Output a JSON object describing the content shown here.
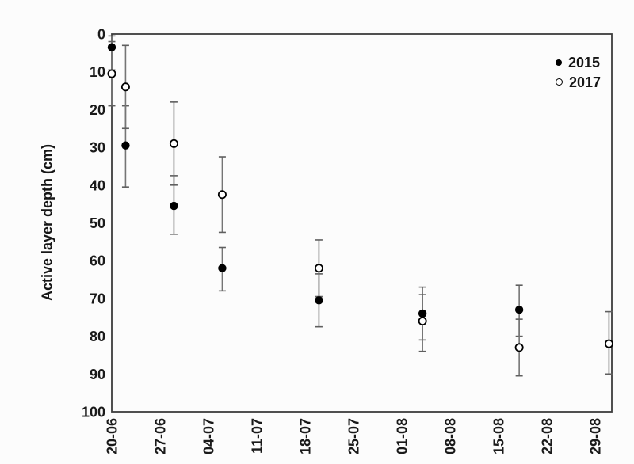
{
  "chart_data": {
    "type": "scatter",
    "title": "",
    "xlabel": "",
    "ylabel": "Active layer depth (cm)",
    "grid": false,
    "error_bars": true,
    "legend": {
      "position": "top-right",
      "entries": [
        "2015",
        "2017"
      ]
    },
    "y_axis": {
      "min": 0,
      "max": 100,
      "tick_step": 10,
      "inverted": true,
      "unit": "cm",
      "ticks": [
        0,
        10,
        20,
        30,
        40,
        50,
        60,
        70,
        80,
        90,
        100
      ]
    },
    "x_axis": {
      "tick_labels": [
        "20-06",
        "27-06",
        "04-07",
        "11-07",
        "18-07",
        "25-07",
        "01-08",
        "08-08",
        "15-08",
        "22-08",
        "29-08"
      ],
      "tick_days": [
        0,
        7,
        14,
        21,
        28,
        35,
        42,
        49,
        56,
        63,
        70
      ],
      "range_days": [
        0,
        72.5
      ]
    },
    "series": [
      {
        "name": "2015",
        "marker": "filled-circle",
        "marker_color": "#000000",
        "points": [
          {
            "date": "20-06",
            "day": 0,
            "depth_cm": 3.5,
            "err_low_cm": 0.5,
            "err_high_cm": 9.5
          },
          {
            "date": "22-06",
            "day": 2,
            "depth_cm": 29.5,
            "err_low_cm": 19,
            "err_high_cm": 40.5
          },
          {
            "date": "29-06",
            "day": 9,
            "depth_cm": 45.5,
            "err_low_cm": 37.5,
            "err_high_cm": 53
          },
          {
            "date": "06-07",
            "day": 16,
            "depth_cm": 62,
            "err_low_cm": 56.5,
            "err_high_cm": 68
          },
          {
            "date": "20-07",
            "day": 30,
            "depth_cm": 70.5,
            "err_low_cm": 63.5,
            "err_high_cm": 77.5
          },
          {
            "date": "04-08",
            "day": 45,
            "depth_cm": 74,
            "err_low_cm": 67,
            "err_high_cm": 81
          },
          {
            "date": "18-08",
            "day": 59,
            "depth_cm": 73,
            "err_low_cm": 66.5,
            "err_high_cm": 80
          }
        ]
      },
      {
        "name": "2017",
        "marker": "open-circle",
        "marker_color": "#000000",
        "marker_fill": "#ffffff",
        "points": [
          {
            "date": "20-06",
            "day": 0,
            "depth_cm": 10.5,
            "err_low_cm": 2,
            "err_high_cm": 19
          },
          {
            "date": "22-06",
            "day": 2,
            "depth_cm": 14,
            "err_low_cm": 3,
            "err_high_cm": 25
          },
          {
            "date": "29-06",
            "day": 9,
            "depth_cm": 29,
            "err_low_cm": 18,
            "err_high_cm": 40
          },
          {
            "date": "06-07",
            "day": 16,
            "depth_cm": 42.5,
            "err_low_cm": 32.5,
            "err_high_cm": 52.5
          },
          {
            "date": "20-07",
            "day": 30,
            "depth_cm": 62,
            "err_low_cm": 54.5,
            "err_high_cm": 69.5
          },
          {
            "date": "04-08",
            "day": 45,
            "depth_cm": 76,
            "err_low_cm": 69,
            "err_high_cm": 84
          },
          {
            "date": "18-08",
            "day": 59,
            "depth_cm": 83,
            "err_low_cm": 75.5,
            "err_high_cm": 90.5
          },
          {
            "date": "31-08",
            "day": 72,
            "depth_cm": 82,
            "err_low_cm": 73.5,
            "err_high_cm": 90
          }
        ]
      }
    ],
    "colors": {
      "error_bar": "#757575",
      "axis_frame": "#3c3c3c",
      "text": "#1a1a1a",
      "background": "#fcfcfc"
    }
  }
}
